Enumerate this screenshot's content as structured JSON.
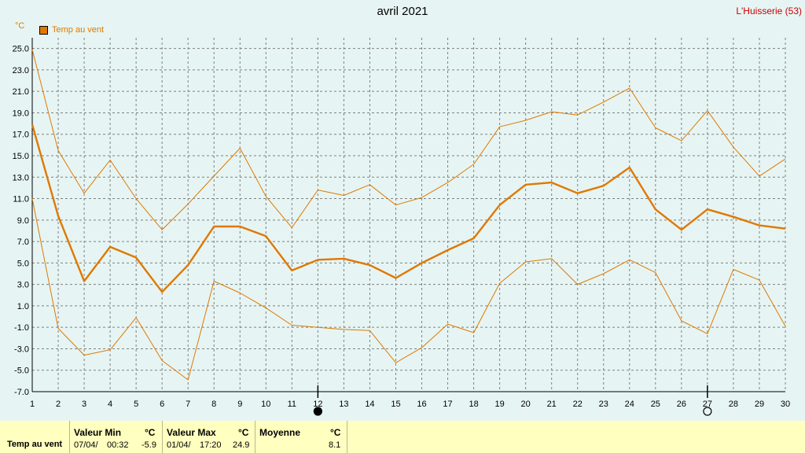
{
  "header": {
    "title": "avril 2021",
    "station": "L'Huisserie (53)",
    "unit": "°C"
  },
  "legend": {
    "label": "Temp au vent",
    "color": "#e07800"
  },
  "chart_data": {
    "type": "line",
    "title": "avril 2021",
    "xlabel": "",
    "ylabel": "°C",
    "x": [
      1,
      2,
      3,
      4,
      5,
      6,
      7,
      8,
      9,
      10,
      11,
      12,
      13,
      14,
      15,
      16,
      17,
      18,
      19,
      20,
      21,
      22,
      23,
      24,
      25,
      26,
      27,
      28,
      29,
      30
    ],
    "xlim": [
      1,
      30
    ],
    "ylim": [
      -7,
      26
    ],
    "yticks": [
      "25.0",
      "23.0",
      "21.0",
      "19.0",
      "17.0",
      "15.0",
      "13.0",
      "11.0",
      "9.0",
      "7.0",
      "5.0",
      "3.0",
      "1.0",
      "-1.0",
      "-3.0",
      "-5.0",
      "-7.0"
    ],
    "grid": true,
    "moon_markers": [
      {
        "day": 12,
        "phase": "new"
      },
      {
        "day": 27,
        "phase": "full"
      }
    ],
    "series": [
      {
        "name": "Temp au vent",
        "role": "mean",
        "color": "#e07800",
        "values": [
          17.9,
          9.4,
          3.3,
          6.5,
          5.5,
          2.3,
          4.8,
          8.4,
          8.4,
          7.5,
          4.3,
          5.3,
          5.4,
          4.8,
          3.6,
          5.0,
          6.2,
          7.3,
          10.4,
          12.3,
          12.5,
          11.5,
          12.2,
          13.9,
          10.0,
          8.1,
          10.0,
          9.3,
          8.5,
          8.2
        ]
      },
      {
        "role": "max",
        "color": "#e07800",
        "values": [
          24.9,
          15.5,
          11.5,
          14.6,
          11.0,
          8.1,
          10.5,
          13.1,
          15.7,
          11.2,
          8.3,
          11.8,
          11.3,
          12.3,
          10.4,
          11.1,
          12.5,
          14.2,
          17.7,
          18.3,
          19.1,
          18.8,
          20.0,
          21.3,
          17.6,
          16.4,
          19.2,
          15.8,
          13.1,
          14.7
        ]
      },
      {
        "role": "min",
        "color": "#e07800",
        "values": [
          11.0,
          -1.1,
          -3.6,
          -3.1,
          -0.1,
          -4.1,
          -5.9,
          3.3,
          2.2,
          0.8,
          -0.8,
          -1.0,
          -1.2,
          -1.3,
          -4.3,
          -2.9,
          -0.7,
          -1.5,
          3.1,
          5.1,
          5.4,
          3.0,
          4.0,
          5.3,
          4.1,
          -0.4,
          -1.6,
          4.4,
          3.4,
          -0.9
        ]
      }
    ]
  },
  "stats": {
    "row_label": "Temp au vent",
    "min": {
      "label": "Valeur Min",
      "unit": "°C",
      "date": "07/04/",
      "time": "00:32",
      "value": "-5.9"
    },
    "max": {
      "label": "Valeur Max",
      "unit": "°C",
      "date": "01/04/",
      "time": "17:20",
      "value": "24.9"
    },
    "avg": {
      "label": "Moyenne",
      "unit": "°C",
      "value": "8.1"
    }
  }
}
